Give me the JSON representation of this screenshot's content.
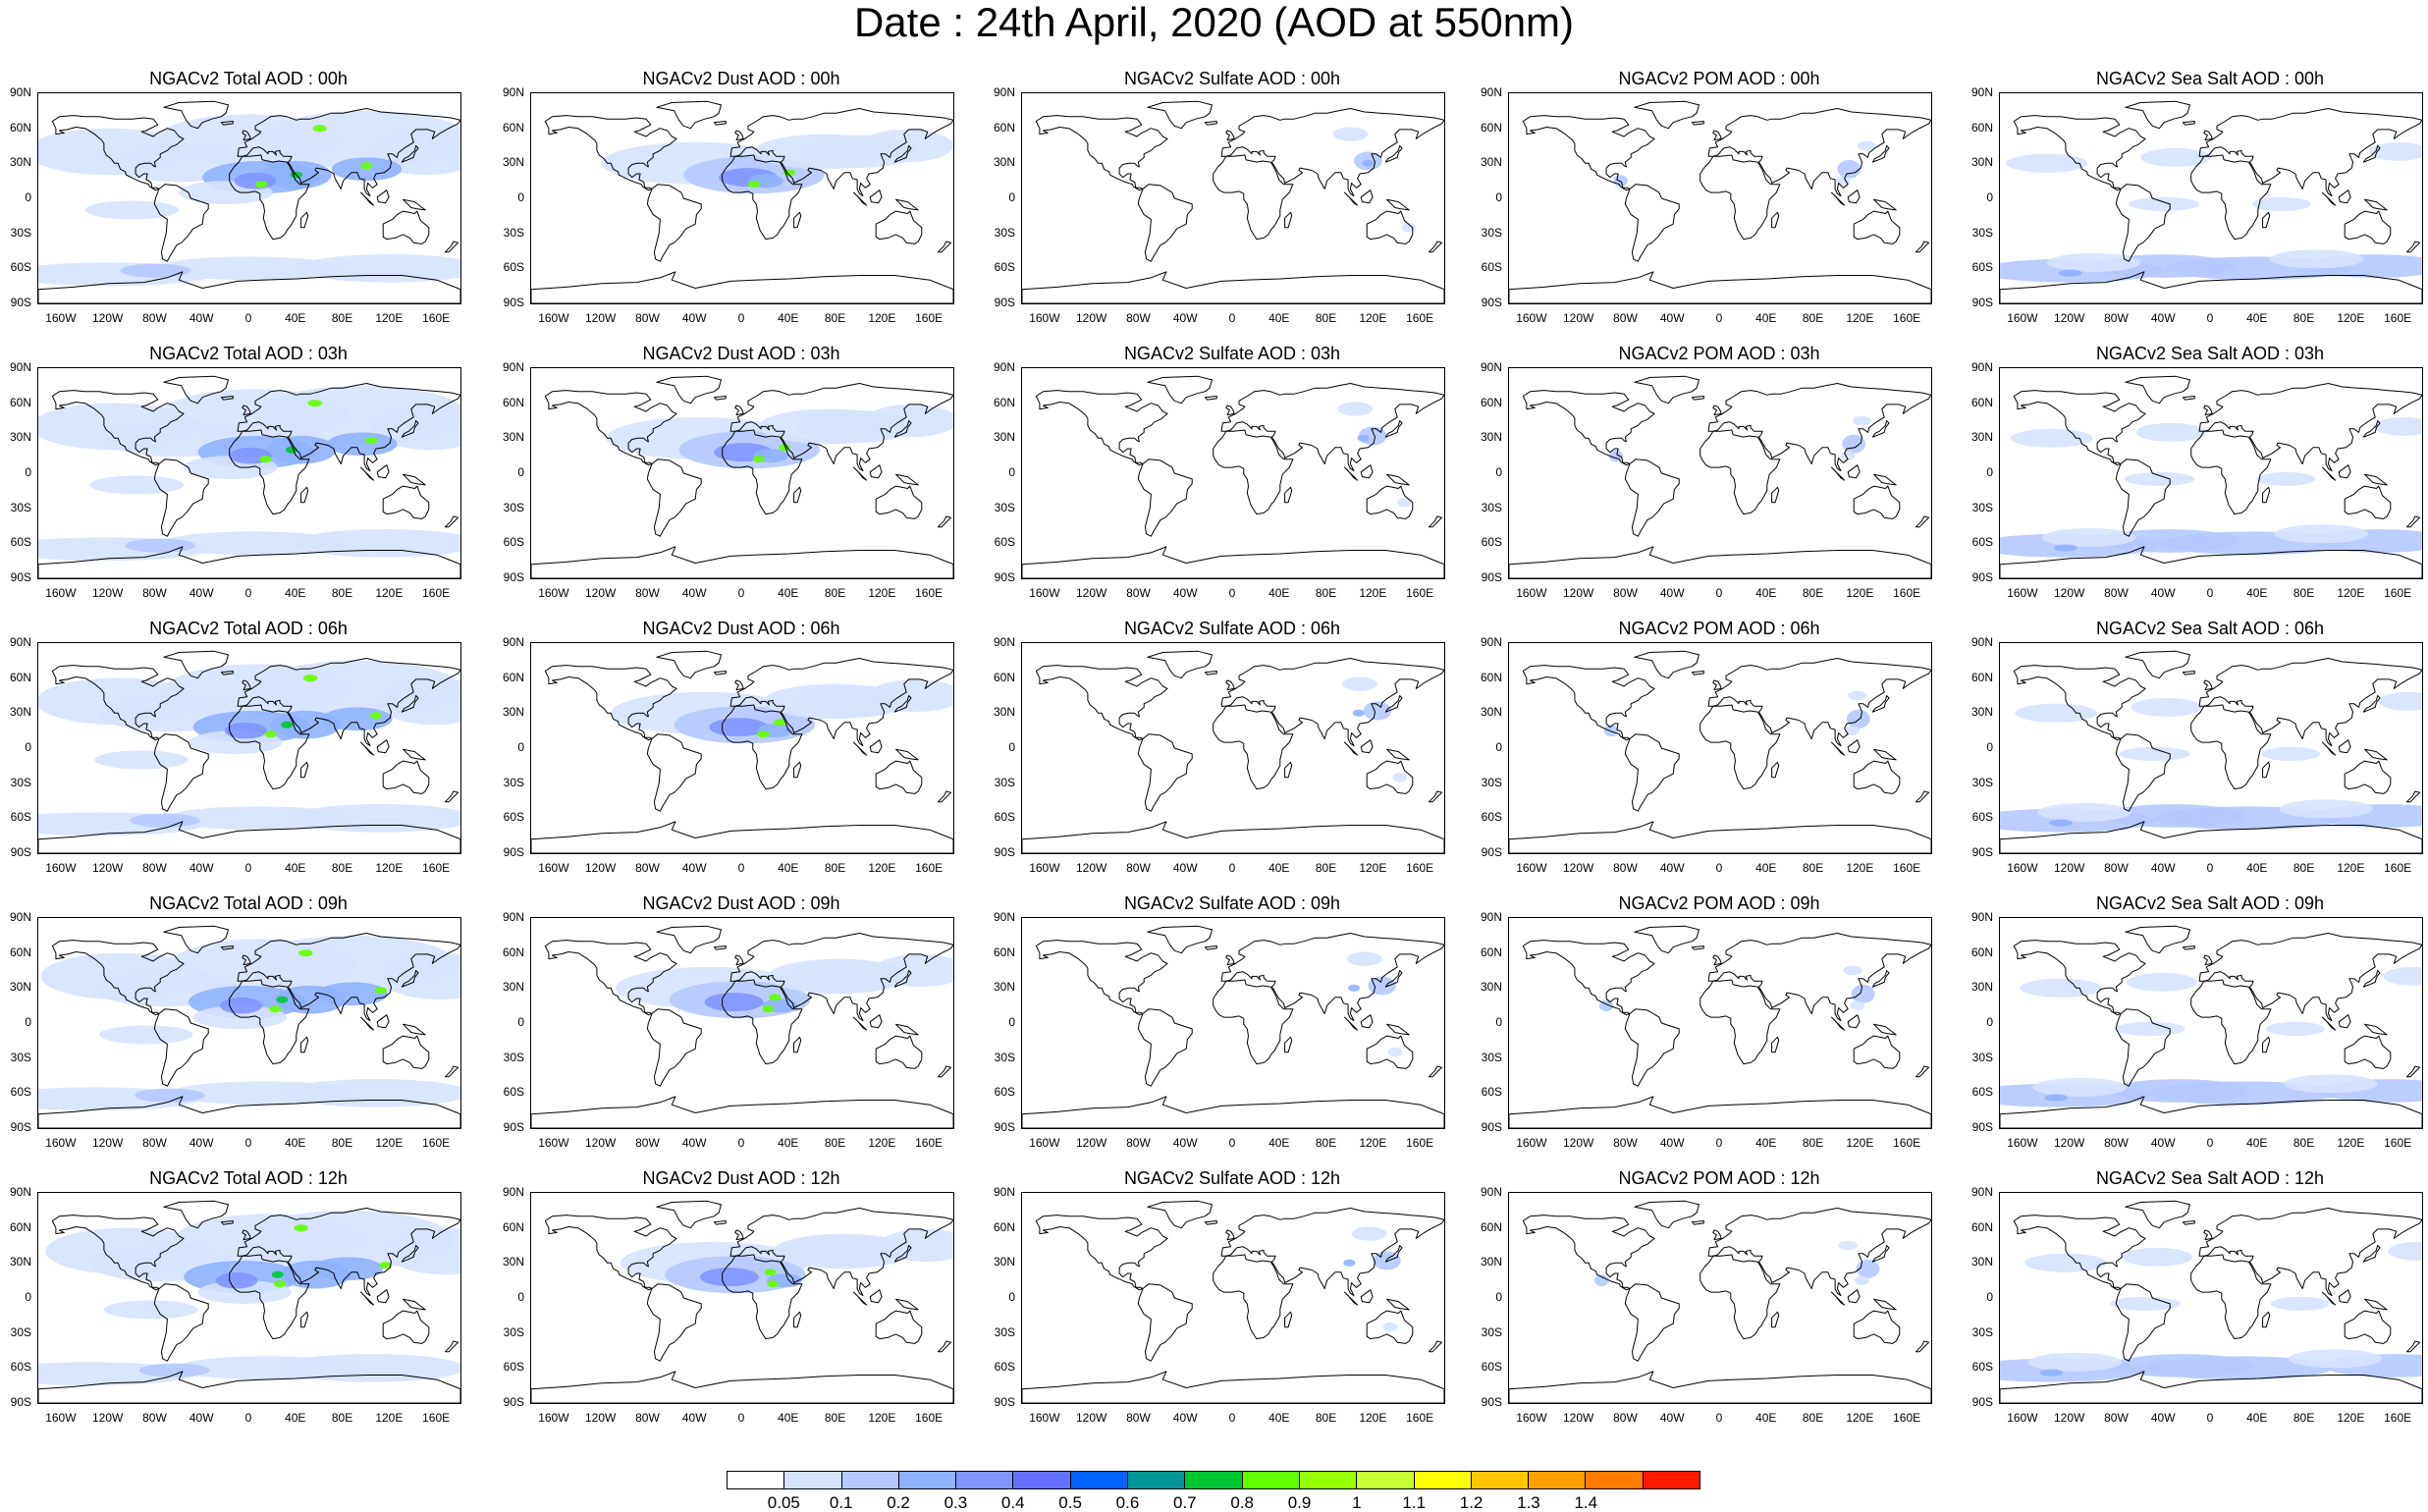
{
  "title": "Date : 24th April, 2020 (AOD at 550nm)",
  "lat_labels": [
    "90N",
    "60N",
    "30N",
    "0",
    "30S",
    "60S",
    "90S"
  ],
  "lon_labels": [
    "160W",
    "120W",
    "80W",
    "40W",
    "0",
    "40E",
    "80E",
    "120E",
    "160E"
  ],
  "columns": [
    {
      "field": "total",
      "titles": [
        "NGACv2 Total AOD : 00h",
        "NGACv2 Total AOD : 03h",
        "NGACv2 Total AOD : 06h",
        "NGACv2 Total AOD : 09h",
        "NGACv2 Total AOD :  12h"
      ]
    },
    {
      "field": "dust",
      "titles": [
        "NGACv2 Dust AOD : 00h",
        "NGACv2 Dust AOD : 03h",
        "NGACv2 Dust AOD : 06h",
        "NGACv2 Dust AOD : 09h",
        "NGACv2 Dust AOD : 12h"
      ]
    },
    {
      "field": "sulfate",
      "titles": [
        "NGACv2 Sulfate AOD : 00h",
        "NGACv2 Sulfate AOD : 03h",
        "NGACv2 Sulfate AOD : 06h",
        "NGACv2 Sulfate AOD : 09h",
        "NGACv2 Sulfate AOD : 12h"
      ]
    },
    {
      "field": "pom",
      "titles": [
        "NGACv2 POM AOD : 00h",
        "NGACv2 POM AOD : 03h",
        "NGACv2 POM AOD : 06h",
        "NGACv2 POM AOD : 09h",
        "NGACv2 POM  AOD : 12h"
      ]
    },
    {
      "field": "seasalt",
      "titles": [
        "NGACv2 Sea Salt AOD : 00h",
        "NGACv2 Sea Salt AOD : 03h",
        "NGACv2 Sea Salt AOD : 06h",
        "NGACv2 Sea Salt  AOD : 09h",
        "NGACv2 Sea Salt AOD : 12h"
      ]
    }
  ],
  "colorbar": {
    "labels": [
      "0.05",
      "0.1",
      "0.2",
      "0.3",
      "0.4",
      "0.5",
      "0.6",
      "0.7",
      "0.8",
      "0.9",
      "1",
      "1.1",
      "1.2",
      "1.3",
      "1.4"
    ],
    "colors": [
      "#ffffff",
      "#d6e2ff",
      "#b5c9ff",
      "#8eb2ff",
      "#7f96ff",
      "#6370ff",
      "#0063ff",
      "#009696",
      "#00c633",
      "#63ff00",
      "#96ff00",
      "#c6ff33",
      "#ffff00",
      "#ffc600",
      "#ffa000",
      "#ff7c00",
      "#ff1900"
    ]
  }
}
